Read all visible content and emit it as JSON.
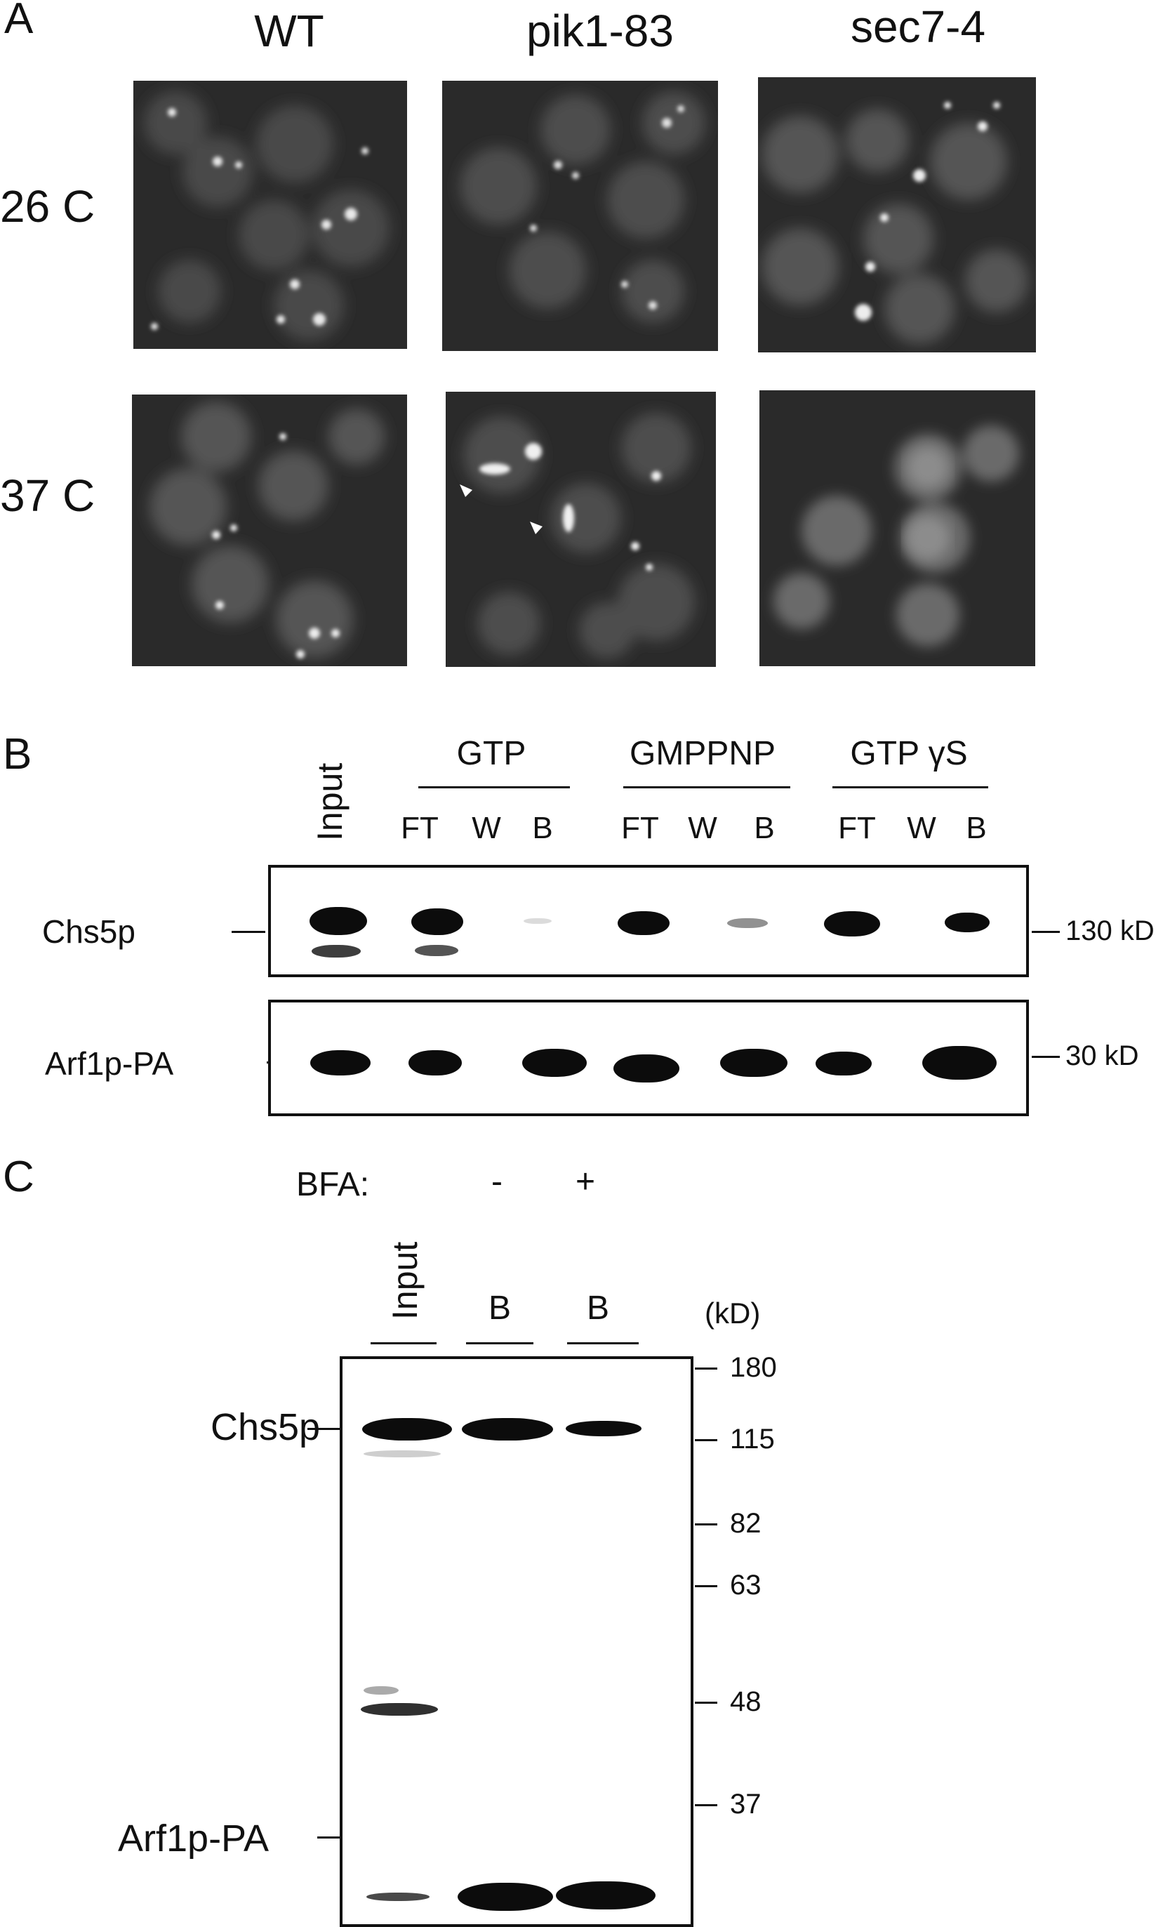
{
  "panelA": {
    "letter": "A",
    "columns": [
      "WT",
      "pik1-83",
      "sec7-4"
    ],
    "rows": [
      "26 C",
      "37 C"
    ]
  },
  "panelB": {
    "letter": "B",
    "input_label": "Input",
    "groups": [
      "GTP",
      "GMPPNP",
      "GTP γS"
    ],
    "lanes": [
      "FT",
      "W",
      "B",
      "FT",
      "W",
      "B",
      "FT",
      "W",
      "B"
    ],
    "blots": [
      {
        "name": "Chs5p",
        "mw": "130 kD"
      },
      {
        "name": "Arf1p-PA",
        "mw": "30 kD"
      }
    ]
  },
  "panelC": {
    "letter": "C",
    "bfa_label": "BFA:",
    "bfa_minus": "-",
    "bfa_plus": "+",
    "input_label": "Input",
    "lane_b1": "B",
    "lane_b2": "B",
    "kd_label": "(kD)",
    "markers": [
      "180",
      "115",
      "82",
      "63",
      "48",
      "37"
    ],
    "proteins": [
      "Chs5p",
      "Arf1p-PA"
    ]
  }
}
